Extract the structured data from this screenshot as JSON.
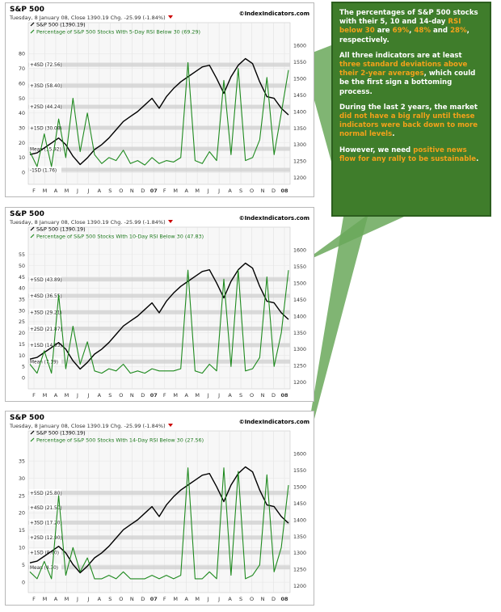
{
  "callout": {
    "p1": [
      "The percentages of S&P 500 stocks with their 5, 10 and 14-day ",
      {
        "h": "RSI below 30"
      },
      " are ",
      {
        "h": "69%"
      },
      ", ",
      {
        "h": "48%"
      },
      " and ",
      {
        "h": "28%"
      },
      ", respectively."
    ],
    "p2": [
      "All three indicators are at least ",
      {
        "h": "three standard deviations above their 2-year averages"
      },
      ", which could be the first sign a bottoming process."
    ],
    "p3": [
      "During the last 2 years, the market ",
      {
        "h": "did not have a big rally until these indicators were back down to more normal levels"
      },
      "."
    ],
    "p4": [
      "However, we need ",
      {
        "h": "positive news flow for any rally to be sustainable"
      },
      "."
    ],
    "bg_color": "#3f7d2b",
    "highlight_color": "#f3a11a"
  },
  "chart_data": [
    {
      "type": "line",
      "title": "S&P 500",
      "subtitle": "Tuesday, 8 January 08, Close 1390.19 Chg. -25.99 (-1.84%)",
      "source": "©IndexIndicators.com",
      "legend": [
        "S&P 500 (1390.19)",
        "Percentage of S&P 500 Stocks With 5-Day RSI Below 30 (69.29)"
      ],
      "x_labels": [
        "F",
        "M",
        "A",
        "M",
        "J",
        "J",
        "A",
        "S",
        "O",
        "N",
        "D",
        "07",
        "F",
        "M",
        "A",
        "M",
        "J",
        "J",
        "A",
        "S",
        "O",
        "N",
        "D",
        "08"
      ],
      "left_axis": {
        "min": -8,
        "max": 90,
        "ticks": [
          80,
          70,
          60,
          50,
          40,
          30,
          20,
          10,
          0
        ]
      },
      "right_axis": {
        "min": 1180,
        "max": 1620,
        "ticks": [
          1600,
          1550,
          1500,
          1450,
          1400,
          1350,
          1300,
          1250,
          1200
        ]
      },
      "bands": [
        {
          "label": "+4SD (72.56)",
          "value": 72.56
        },
        {
          "label": "+3SD (58.40)",
          "value": 58.4
        },
        {
          "label": "+2SD (44.24)",
          "value": 44.24
        },
        {
          "label": "+1SD (30.08)",
          "value": 30.08
        },
        {
          "label": "Mean (15.92)",
          "value": 15.92
        },
        {
          "label": "-1SD (1.76)",
          "value": 1.76
        }
      ],
      "series": [
        {
          "name": "S&P 500",
          "color": "#000000",
          "axis": "right",
          "values": [
            1270,
            1275,
            1290,
            1305,
            1320,
            1300,
            1265,
            1240,
            1260,
            1285,
            1300,
            1320,
            1345,
            1370,
            1385,
            1400,
            1420,
            1440,
            1410,
            1445,
            1470,
            1490,
            1505,
            1520,
            1535,
            1540,
            1500,
            1455,
            1505,
            1540,
            1560,
            1545,
            1490,
            1445,
            1440,
            1410,
            1390
          ]
        },
        {
          "name": "% Stocks 5-Day RSI < 30",
          "color": "#1f8a1f",
          "axis": "left",
          "values": [
            14,
            4,
            26,
            4,
            36,
            10,
            50,
            14,
            40,
            12,
            6,
            10,
            8,
            15,
            6,
            8,
            5,
            10,
            6,
            8,
            7,
            10,
            74,
            8,
            6,
            14,
            8,
            62,
            12,
            70,
            8,
            10,
            22,
            64,
            12,
            40,
            69
          ]
        }
      ]
    },
    {
      "type": "line",
      "title": "S&P 500",
      "subtitle": "Tuesday, 8 January 08, Close 1390.19 Chg. -25.99 (-1.84%)",
      "source": "©IndexIndicators.com",
      "legend": [
        "S&P 500 (1390.19)",
        "Percentage of S&P 500 Stocks With 10-Day RSI Below 30 (47.83)"
      ],
      "x_labels": [
        "F",
        "M",
        "A",
        "M",
        "J",
        "J",
        "A",
        "S",
        "O",
        "N",
        "D",
        "07",
        "F",
        "M",
        "A",
        "M",
        "J",
        "J",
        "A",
        "S",
        "O",
        "N",
        "D",
        "08"
      ],
      "left_axis": {
        "min": -5,
        "max": 60,
        "ticks": [
          55,
          50,
          45,
          40,
          35,
          30,
          25,
          20,
          15,
          10,
          5,
          0
        ]
      },
      "right_axis": {
        "min": 1180,
        "max": 1620,
        "ticks": [
          1600,
          1550,
          1500,
          1450,
          1400,
          1350,
          1300,
          1250,
          1200
        ]
      },
      "bands": [
        {
          "label": "+5SD (43.89)",
          "value": 43.89
        },
        {
          "label": "+4SD (36.55)",
          "value": 36.55
        },
        {
          "label": "+3SD (29.21)",
          "value": 29.21
        },
        {
          "label": "+2SD (21.87)",
          "value": 21.87
        },
        {
          "label": "+1SD (14.53)",
          "value": 14.53
        },
        {
          "label": "Mean (7.19)",
          "value": 7.19
        }
      ],
      "series": [
        {
          "name": "S&P 500",
          "color": "#000000",
          "axis": "right",
          "values": [
            1270,
            1275,
            1290,
            1305,
            1320,
            1300,
            1265,
            1240,
            1260,
            1285,
            1300,
            1320,
            1345,
            1370,
            1385,
            1400,
            1420,
            1440,
            1410,
            1445,
            1470,
            1490,
            1505,
            1520,
            1535,
            1540,
            1500,
            1455,
            1505,
            1540,
            1560,
            1545,
            1490,
            1445,
            1440,
            1410,
            1390
          ]
        },
        {
          "name": "% Stocks 10-Day RSI < 30",
          "color": "#1f8a1f",
          "axis": "left",
          "values": [
            6,
            2,
            12,
            2,
            37,
            4,
            23,
            6,
            16,
            3,
            2,
            4,
            3,
            6,
            2,
            3,
            2,
            4,
            3,
            3,
            3,
            4,
            48,
            3,
            2,
            6,
            3,
            44,
            5,
            48,
            3,
            4,
            9,
            45,
            5,
            20,
            48
          ]
        }
      ]
    },
    {
      "type": "line",
      "title": "S&P 500",
      "subtitle": "Tuesday, 8 January 08, Close 1390.19 Chg. -25.99 (-1.84%)",
      "source": "©IndexIndicators.com",
      "legend": [
        "S&P 500 (1390.19)",
        "Percentage of S&P 500 Stocks With 14-Day RSI Below 30 (27.56)"
      ],
      "x_labels": [
        "F",
        "M",
        "A",
        "M",
        "J",
        "J",
        "A",
        "S",
        "O",
        "N",
        "D",
        "07",
        "F",
        "M",
        "A",
        "M",
        "J",
        "J",
        "A",
        "S",
        "O",
        "N",
        "D",
        "08"
      ],
      "left_axis": {
        "min": -3,
        "max": 39,
        "ticks": [
          35,
          30,
          25,
          20,
          15,
          10,
          5,
          0
        ]
      },
      "right_axis": {
        "min": 1180,
        "max": 1620,
        "ticks": [
          1600,
          1550,
          1500,
          1450,
          1400,
          1350,
          1300,
          1250,
          1200
        ]
      },
      "bands": [
        {
          "label": "+5SD (25.80)",
          "value": 25.8
        },
        {
          "label": "+4SD (21.50)",
          "value": 21.5
        },
        {
          "label": "+3SD (17.20)",
          "value": 17.2
        },
        {
          "label": "+2SD (12.90)",
          "value": 12.9
        },
        {
          "label": "+1SD (8.60)",
          "value": 8.6
        },
        {
          "label": "Mean (4.30)",
          "value": 4.3
        }
      ],
      "series": [
        {
          "name": "S&P 500",
          "color": "#000000",
          "axis": "right",
          "values": [
            1270,
            1275,
            1290,
            1305,
            1320,
            1300,
            1265,
            1240,
            1260,
            1285,
            1300,
            1320,
            1345,
            1370,
            1385,
            1400,
            1420,
            1440,
            1410,
            1445,
            1470,
            1490,
            1505,
            1520,
            1535,
            1540,
            1500,
            1455,
            1505,
            1540,
            1560,
            1545,
            1490,
            1445,
            1440,
            1410,
            1390
          ]
        },
        {
          "name": "% Stocks 14-Day RSI < 30",
          "color": "#1f8a1f",
          "axis": "left",
          "values": [
            3,
            1,
            6,
            1,
            25,
            2,
            10,
            3,
            7,
            1,
            1,
            2,
            1,
            3,
            1,
            1,
            1,
            2,
            1,
            2,
            1,
            2,
            33,
            1,
            1,
            3,
            1,
            33,
            2,
            32,
            1,
            2,
            5,
            31,
            3,
            10,
            28
          ]
        }
      ]
    }
  ]
}
